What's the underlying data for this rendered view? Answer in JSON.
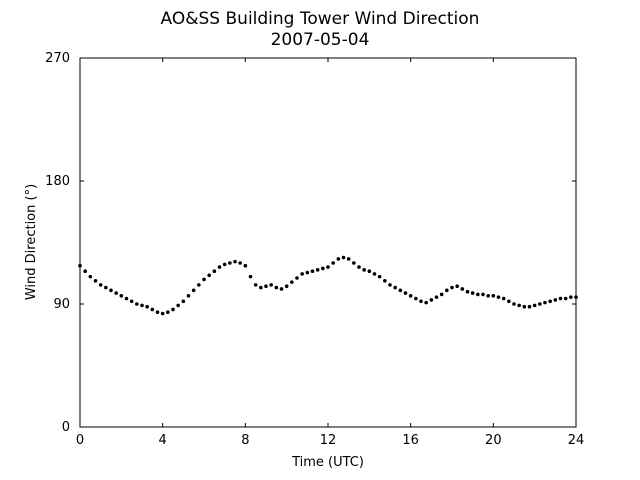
{
  "chart_data": {
    "type": "scatter",
    "title": "AO&SS Building Tower Wind Direction",
    "subtitle": "2007-05-04",
    "xlabel": "Time (UTC)",
    "ylabel": "Wind Direction (°)",
    "xlim": [
      0,
      24
    ],
    "ylim": [
      0,
      270
    ],
    "xticks": [
      0,
      4,
      8,
      12,
      16,
      20,
      24
    ],
    "yticks": [
      0,
      90,
      180,
      270
    ],
    "grid": false,
    "legend": "none",
    "marker_color": "#000000",
    "series": [
      {
        "x": [
          0.0,
          0.25,
          0.5,
          0.75,
          1.0,
          1.25,
          1.5,
          1.75,
          2.0,
          2.25,
          2.5,
          2.75,
          3.0,
          3.25,
          3.5,
          3.75,
          4.0,
          4.25,
          4.5,
          4.75,
          5.0,
          5.25,
          5.5,
          5.75,
          6.0,
          6.25,
          6.5,
          6.75,
          7.0,
          7.25,
          7.5,
          7.75,
          8.0,
          8.25,
          8.5,
          8.75,
          9.0,
          9.25,
          9.5,
          9.75,
          10.0,
          10.25,
          10.5,
          10.75,
          11.0,
          11.25,
          11.5,
          11.75,
          12.0,
          12.25,
          12.5,
          12.75,
          13.0,
          13.25,
          13.5,
          13.75,
          14.0,
          14.25,
          14.5,
          14.75,
          15.0,
          15.25,
          15.5,
          15.75,
          16.0,
          16.25,
          16.5,
          16.75,
          17.0,
          17.25,
          17.5,
          17.75,
          18.0,
          18.25,
          18.5,
          18.75,
          19.0,
          19.25,
          19.5,
          19.75,
          20.0,
          20.25,
          20.5,
          20.75,
          21.0,
          21.25,
          21.5,
          21.75,
          22.0,
          22.25,
          22.5,
          22.75,
          23.0,
          23.25,
          23.5,
          23.75,
          24.0
        ],
        "y": [
          118,
          114,
          110,
          107,
          104,
          102,
          100,
          98,
          96,
          94,
          92,
          90,
          89,
          88,
          86,
          84,
          83,
          84,
          86,
          89,
          92,
          96,
          100,
          104,
          108,
          111,
          114,
          117,
          119,
          120,
          121,
          120,
          118,
          110,
          104,
          102,
          103,
          104,
          102,
          101,
          103,
          106,
          109,
          112,
          113,
          114,
          115,
          116,
          117,
          120,
          123,
          124,
          123,
          120,
          117,
          115,
          114,
          112,
          110,
          107,
          104,
          102,
          100,
          98,
          96,
          94,
          92,
          91,
          93,
          95,
          97,
          100,
          102,
          103,
          101,
          99,
          98,
          97,
          97,
          96,
          96,
          95,
          94,
          92,
          90,
          89,
          88,
          88,
          89,
          90,
          91,
          92,
          93,
          94,
          94,
          95,
          95
        ]
      }
    ]
  }
}
